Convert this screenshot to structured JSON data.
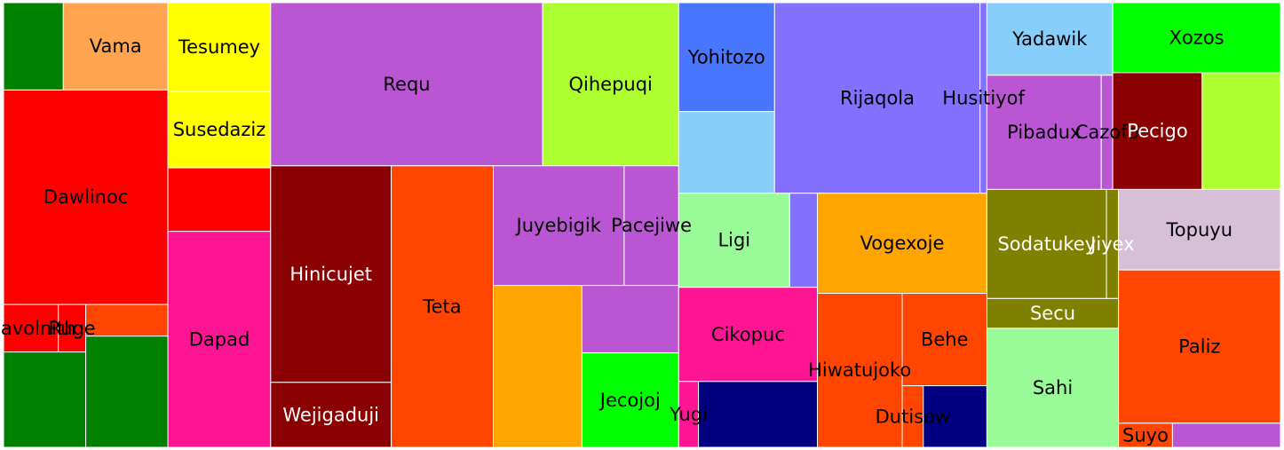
{
  "chart_data": {
    "type": "treemap",
    "title": "",
    "groups": [
      {
        "color": "#008000",
        "leaves": [
          {
            "color": "#008000",
            "label": "",
            "value": 4
          },
          {
            "color": "#ffa54f",
            "label": "Vama",
            "value": 7
          },
          {
            "color": "#ff0000",
            "label": "Dawlinoc",
            "value": 27
          },
          {
            "color": "#ff0000",
            "label": "Qavolnith",
            "value": 2
          },
          {
            "color": "#ff0000",
            "label": "Ruge",
            "value": 1
          },
          {
            "color": "#008000",
            "label": "",
            "value": 6
          },
          {
            "color": "#ff4500",
            "label": "",
            "value": 2
          },
          {
            "color": "#008000",
            "label": "",
            "value": 7
          }
        ]
      },
      {
        "color": "#ffff00",
        "leaves": [
          {
            "color": "#ffff00",
            "label": "Tesumey",
            "value": 7
          },
          {
            "color": "#ffff00",
            "label": "Susedaziz",
            "value": 6
          },
          {
            "color": "#ff0000",
            "label": "",
            "value": 5
          },
          {
            "color": "#ff1493",
            "label": "Dapad",
            "value": 17
          }
        ]
      },
      {
        "color": "#ba55d3",
        "leaves": [
          {
            "color": "#ba55d3",
            "label": "Requ",
            "value": 34
          },
          {
            "color": "#adff2f",
            "label": "Qihepuqi",
            "value": 17
          },
          {
            "color": "#8b0000",
            "label": "Hinicujet",
            "value": 20
          },
          {
            "color": "#8b0000",
            "label": "Wejigaduji",
            "value": 6
          },
          {
            "color": "#ff4500",
            "label": "Teta",
            "value": 22
          },
          {
            "color": "#ba55d3",
            "label": "Juyebigik",
            "value": 12
          },
          {
            "color": "#ba55d3",
            "label": "Pacejiwe",
            "value": 5
          },
          {
            "color": "#ffa500",
            "label": "",
            "value": 11
          },
          {
            "color": "#ba55d3",
            "label": "",
            "value": 5
          },
          {
            "color": "#00ff00",
            "label": "Jecojoj",
            "value": 7
          }
        ]
      },
      {
        "color": "#4876ff",
        "leaves": [
          {
            "color": "#4876ff",
            "label": "Yohitozo",
            "value": 8
          },
          {
            "color": "#87cefa",
            "label": "",
            "value": 6
          },
          {
            "color": "#8470ff",
            "label": "Rijaqola",
            "value": 30
          },
          {
            "color": "#8470ff",
            "label": "Husitiyof",
            "value": 1
          },
          {
            "color": "#98fb98",
            "label": "Ligi",
            "value": 8
          },
          {
            "color": "#8470ff",
            "label": "",
            "value": 2
          },
          {
            "color": "#ff1493",
            "label": "Cikopuc",
            "value": 10
          },
          {
            "color": "#ff1493",
            "label": "Yugi",
            "value": 1
          },
          {
            "color": "#000080",
            "label": "",
            "value": 6
          },
          {
            "color": "#ffa500",
            "label": "Vogexoje",
            "value": 13
          },
          {
            "color": "#ff4500",
            "label": "Hiwatujoko",
            "value": 10
          },
          {
            "color": "#ff4500",
            "label": "Behe",
            "value": 6
          },
          {
            "color": "#ff4500",
            "label": "Dutisow",
            "value": 1
          },
          {
            "color": "#000080",
            "label": "",
            "value": 3
          }
        ]
      },
      {
        "color": "#87cefa",
        "leaves": [
          {
            "color": "#87cefa",
            "label": "Yadawik",
            "value": 7
          },
          {
            "color": "#ba55d3",
            "label": "Pibadux",
            "value": 10
          },
          {
            "color": "#ba55d3",
            "label": "Cazofo",
            "value": 1
          },
          {
            "color": "#00ff00",
            "label": "Xozos",
            "value": 9
          },
          {
            "color": "#8b0000",
            "label": "Pecigo",
            "value": 8
          },
          {
            "color": "#adff2f",
            "label": "",
            "value": 7
          },
          {
            "color": "#808000",
            "label": "Sodatukey",
            "value": 10
          },
          {
            "color": "#808000",
            "label": "Jiyex",
            "value": 1
          },
          {
            "color": "#808000",
            "label": "Secu",
            "value": 3
          },
          {
            "color": "#98fb98",
            "label": "Sahi",
            "value": 12
          },
          {
            "color": "#d8bfd8",
            "label": "Topuyu",
            "value": 10
          },
          {
            "color": "#ff4500",
            "label": "Paliz",
            "value": 19
          },
          {
            "color": "#ff4500",
            "label": "Suyo",
            "value": 1
          },
          {
            "color": "#ba55d3",
            "label": "",
            "value": 2
          }
        ]
      }
    ]
  }
}
